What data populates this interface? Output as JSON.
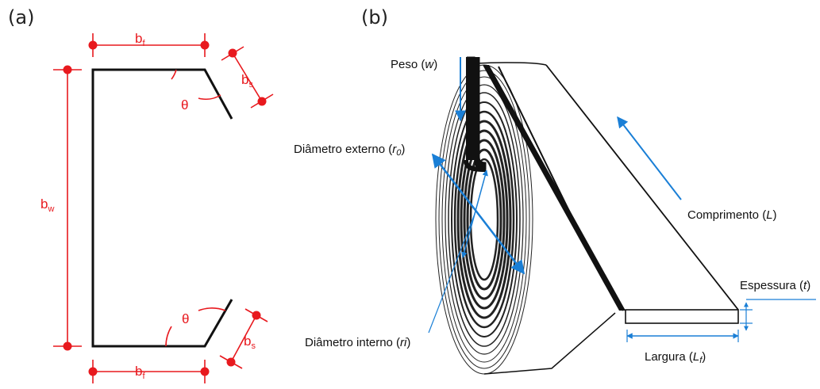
{
  "colors": {
    "dimension": "#e8191e",
    "annotation": "#1a7fd6",
    "outline": "#111111"
  },
  "panel_a": {
    "label": "(a)",
    "dims": {
      "bf_main": "b",
      "bf_sub": "f",
      "bs_main": "b",
      "bs_sub": "s",
      "bw_main": "b",
      "bw_sub": "w",
      "theta": "θ"
    }
  },
  "panel_b": {
    "label": "(b)",
    "labels": {
      "peso": {
        "text": "Peso (",
        "var": "w",
        "close": ")"
      },
      "diam_ext": {
        "text": "Diâmetro externo (",
        "var": "r",
        "sub": "0",
        "close": ")"
      },
      "diam_int": {
        "text": "Diâmetro interno (",
        "var": "ri",
        "close": ")"
      },
      "comprimento": {
        "text": "Comprimento (",
        "var": "L",
        "close": ")"
      },
      "espessura": {
        "text": "Espessura (",
        "var": "t",
        "close": ")"
      },
      "largura": {
        "text": "Largura (",
        "var": "L",
        "sub": "f",
        "close": ")"
      }
    }
  }
}
